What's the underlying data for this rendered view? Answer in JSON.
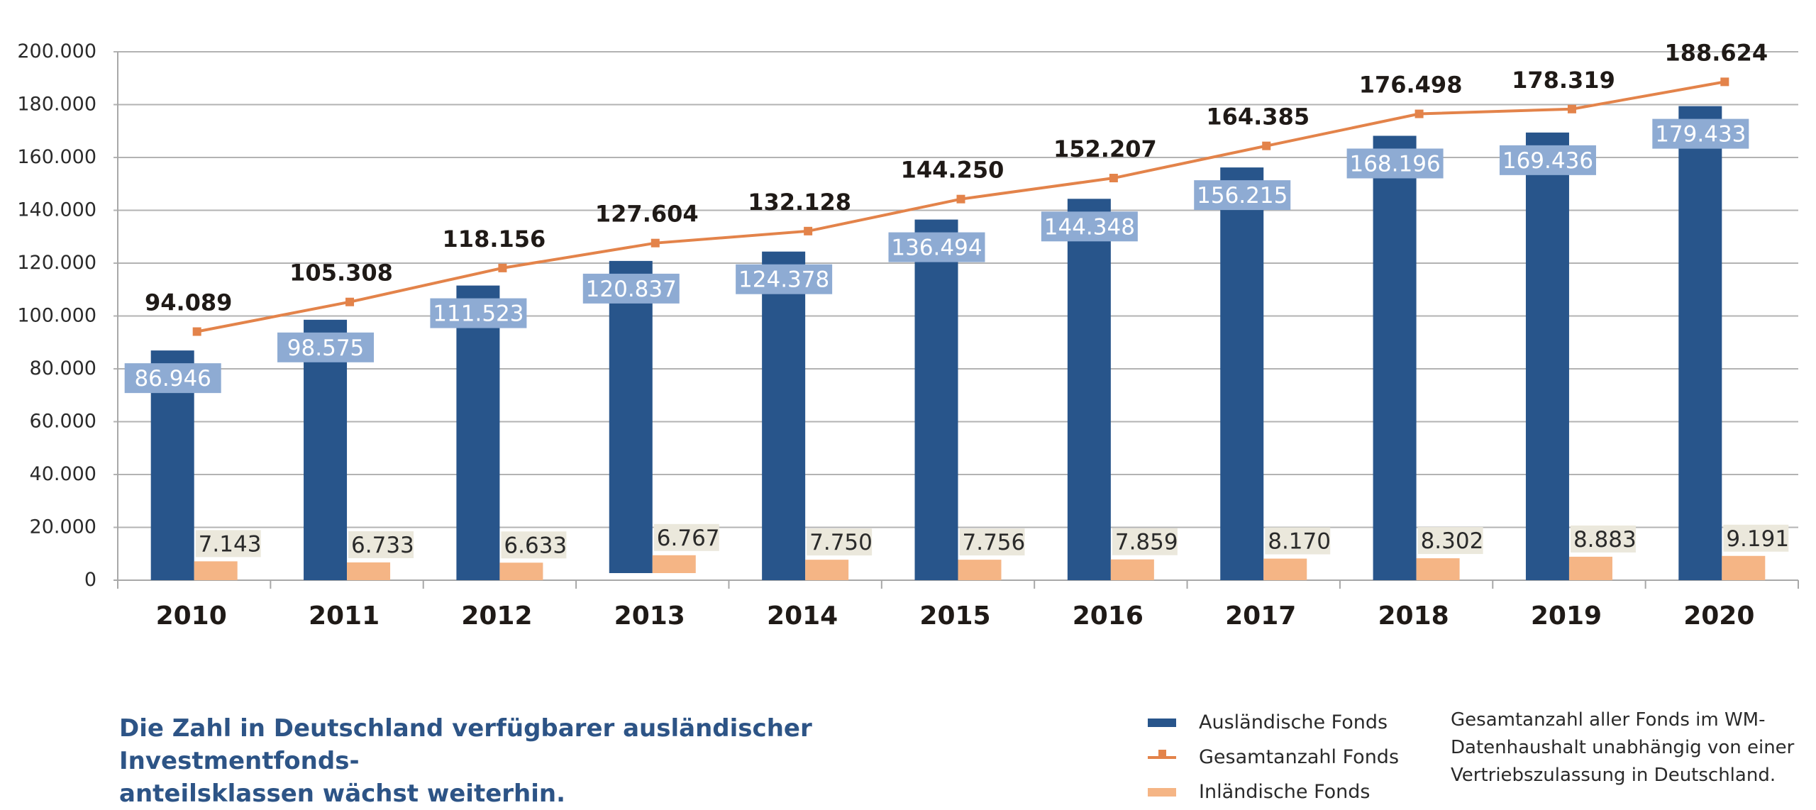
{
  "chart_data": {
    "type": "bar",
    "title": "",
    "xlabel": "",
    "ylabel": "",
    "ylim": [
      0,
      200000
    ],
    "grid": true,
    "legend_position": "bottom-right",
    "y_ticks": [
      {
        "value": 0,
        "label": "0"
      },
      {
        "value": 20000,
        "label": "20.000"
      },
      {
        "value": 40000,
        "label": "40.000"
      },
      {
        "value": 60000,
        "label": "60.000"
      },
      {
        "value": 80000,
        "label": "80.000"
      },
      {
        "value": 100000,
        "label": "100.000"
      },
      {
        "value": 120000,
        "label": "120.000"
      },
      {
        "value": 140000,
        "label": "140.000"
      },
      {
        "value": 160000,
        "label": "160.000"
      },
      {
        "value": 180000,
        "label": "180.000"
      },
      {
        "value": 200000,
        "label": "200.000"
      }
    ],
    "categories": [
      "2010",
      "2011",
      "2012",
      "2013",
      "2014",
      "2015",
      "2016",
      "2017",
      "2018",
      "2019",
      "2020"
    ],
    "series": [
      {
        "name": "Ausländische Fonds",
        "type": "bar",
        "color": "#28558b",
        "label_bg": "#8eabd3",
        "values": [
          86946,
          98575,
          111523,
          120837,
          124378,
          136494,
          144348,
          156215,
          168196,
          169436,
          179433
        ],
        "labels": [
          "86.946",
          "98.575",
          "111.523",
          "120.837",
          "124.378",
          "136.494",
          "144.348",
          "156.215",
          "168.196",
          "169.436",
          "179.433"
        ]
      },
      {
        "name": "Inländische Fonds",
        "type": "bar",
        "color": "#f5b585",
        "label_bg": "#ebe8dc",
        "values": [
          7143,
          6733,
          6633,
          6767,
          7750,
          7756,
          7859,
          8170,
          8302,
          8883,
          9191
        ],
        "labels": [
          "7.143",
          "6.733",
          "6.633",
          "6.767",
          "7.750",
          "7.756",
          "7.859",
          "8.170",
          "8.302",
          "8.883",
          "9.191"
        ]
      },
      {
        "name": "Gesamtanzahl Fonds",
        "type": "line",
        "color": "#e3834a",
        "values": [
          94089,
          105308,
          118156,
          127604,
          132128,
          144250,
          152207,
          164385,
          176498,
          178319,
          188624
        ],
        "labels": [
          "94.089",
          "105.308",
          "118.156",
          "127.604",
          "132.128",
          "144.250",
          "152.207",
          "164.385",
          "176.498",
          "178.319",
          "188.624"
        ]
      }
    ],
    "annotations": {
      "headline": "Die Zahl in Deutschland verfügbarer ausländischer Investmentfonds-anteilsklassen wächst weiterhin.",
      "footnote": "Gesamtanzahl aller Fonds im WM-Datenhaushalt unabhängig von einer Vertriebszulassung in Deutschland."
    }
  },
  "headline": {
    "line1": "Die Zahl in Deutschland verfügbarer ausländischer Investmentfonds-",
    "line2": "anteilsklassen wächst weiterhin."
  },
  "legend": {
    "items": [
      {
        "label": "Ausländische Fonds",
        "color": "#28558b",
        "kind": "bar"
      },
      {
        "label": "Gesamtanzahl Fonds",
        "color": "#e3834a",
        "kind": "line"
      },
      {
        "label": "Inländische Fonds",
        "color": "#f5b585",
        "kind": "bar"
      }
    ]
  },
  "footnote": {
    "line1": "Gesamtanzahl aller Fonds im WM-",
    "line2": "Datenhaushalt unabhängig von einer",
    "line3": "Vertriebszulassung in Deutschland."
  },
  "colors": {
    "grid": "#b3b3b3",
    "axis": "#a8a8a8"
  }
}
